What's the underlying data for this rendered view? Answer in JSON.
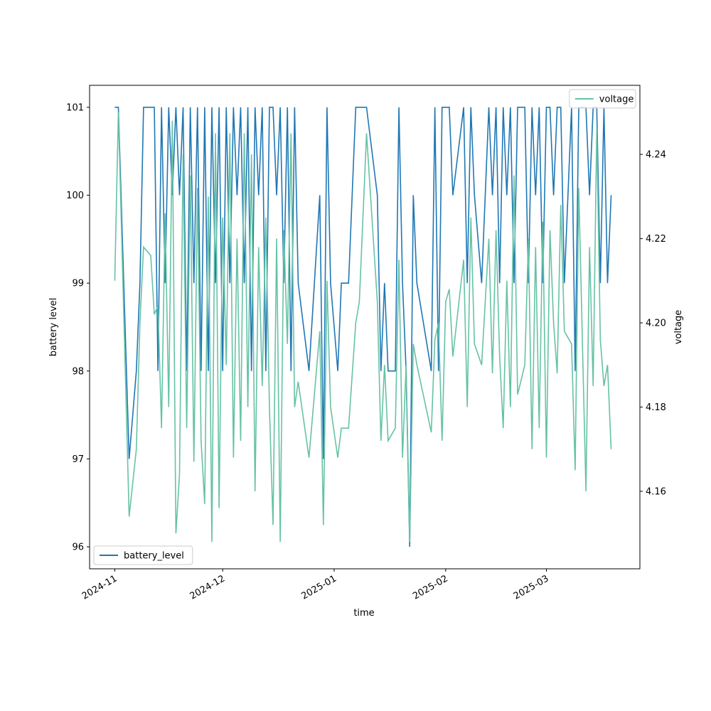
{
  "chart_data": {
    "type": "line",
    "xlabel": "time",
    "ylabel": "battery level",
    "y2label": "voltage",
    "x": [
      "2024-11-01",
      "2024-11-02",
      "2024-11-05",
      "2024-11-07",
      "2024-11-08",
      "2024-11-09",
      "2024-11-11",
      "2024-11-12",
      "2024-11-13",
      "2024-11-14",
      "2024-11-15",
      "2024-11-16",
      "2024-11-17",
      "2024-11-18",
      "2024-11-19",
      "2024-11-20",
      "2024-11-21",
      "2024-11-22",
      "2024-11-23",
      "2024-11-24",
      "2024-11-25",
      "2024-11-26",
      "2024-11-27",
      "2024-11-28",
      "2024-11-29",
      "2024-11-30",
      "2024-12-01",
      "2024-12-02",
      "2024-12-03",
      "2024-12-04",
      "2024-12-05",
      "2024-12-06",
      "2024-12-07",
      "2024-12-08",
      "2024-12-09",
      "2024-12-10",
      "2024-12-11",
      "2024-12-12",
      "2024-12-13",
      "2024-12-14",
      "2024-12-15",
      "2024-12-16",
      "2024-12-17",
      "2024-12-18",
      "2024-12-19",
      "2024-12-20",
      "2024-12-21",
      "2024-12-22",
      "2024-12-25",
      "2024-12-28",
      "2024-12-29",
      "2024-12-30",
      "2024-12-31",
      "2025-01-02",
      "2025-01-03",
      "2025-01-05",
      "2025-01-07",
      "2025-01-08",
      "2025-01-10",
      "2025-01-13",
      "2025-01-14",
      "2025-01-15",
      "2025-01-16",
      "2025-01-18",
      "2025-01-19",
      "2025-01-20",
      "2025-01-21",
      "2025-01-22",
      "2025-01-23",
      "2025-01-24",
      "2025-01-28",
      "2025-01-29",
      "2025-01-30",
      "2025-01-31",
      "2025-02-01",
      "2025-02-02",
      "2025-02-03",
      "2025-02-06",
      "2025-02-07",
      "2025-02-08",
      "2025-02-09",
      "2025-02-11",
      "2025-02-13",
      "2025-02-14",
      "2025-02-15",
      "2025-02-16",
      "2025-02-17",
      "2025-02-18",
      "2025-02-19",
      "2025-02-20",
      "2025-02-21",
      "2025-02-23",
      "2025-02-24",
      "2025-02-25",
      "2025-02-26",
      "2025-02-27",
      "2025-02-28",
      "2025-03-01",
      "2025-03-02",
      "2025-03-03",
      "2025-03-04",
      "2025-03-05",
      "2025-03-06",
      "2025-03-08",
      "2025-03-09",
      "2025-03-10",
      "2025-03-12",
      "2025-03-13",
      "2025-03-14",
      "2025-03-15",
      "2025-03-16",
      "2025-03-17",
      "2025-03-18",
      "2025-03-19"
    ],
    "series": [
      {
        "name": "battery_level",
        "color": "#1f77b4",
        "axis": "y",
        "values": [
          101,
          101,
          97,
          98,
          99,
          101,
          101,
          101,
          98,
          101,
          99,
          101,
          100,
          101,
          100,
          101,
          98,
          101,
          99,
          101,
          98,
          101,
          98,
          101,
          99,
          101,
          98,
          101,
          99,
          101,
          100,
          101,
          99,
          101,
          98,
          101,
          100,
          101,
          98,
          101,
          101,
          100,
          101,
          99,
          101,
          98,
          101,
          99,
          98,
          100,
          97,
          101,
          99,
          98,
          99,
          99,
          101,
          101,
          101,
          100,
          98,
          99,
          98,
          98,
          101,
          99,
          98,
          96,
          100,
          99,
          98,
          101,
          98,
          101,
          101,
          101,
          100,
          101,
          99,
          101,
          100,
          99,
          101,
          100,
          101,
          99,
          101,
          100,
          101,
          99,
          101,
          101,
          99,
          101,
          100,
          101,
          99,
          101,
          101,
          100,
          101,
          101,
          99,
          101,
          98,
          101,
          101,
          100,
          101,
          101,
          99,
          101,
          99,
          100
        ]
      },
      {
        "name": "voltage",
        "color": "#66c2a5",
        "axis": "y2",
        "values": [
          4.21,
          4.25,
          4.154,
          4.17,
          4.2,
          4.218,
          4.216,
          4.202,
          4.204,
          4.175,
          4.226,
          4.18,
          4.248,
          4.15,
          4.164,
          4.24,
          4.175,
          4.235,
          4.167,
          4.232,
          4.172,
          4.157,
          4.23,
          4.148,
          4.245,
          4.156,
          4.225,
          4.19,
          4.245,
          4.168,
          4.22,
          4.172,
          4.245,
          4.18,
          4.24,
          4.16,
          4.218,
          4.185,
          4.225,
          4.18,
          4.152,
          4.22,
          4.148,
          4.222,
          4.195,
          4.245,
          4.18,
          4.186,
          4.168,
          4.198,
          4.152,
          4.21,
          4.18,
          4.168,
          4.175,
          4.175,
          4.2,
          4.205,
          4.245,
          4.205,
          4.172,
          4.19,
          4.172,
          4.175,
          4.215,
          4.168,
          4.19,
          4.148,
          4.195,
          4.19,
          4.174,
          4.196,
          4.2,
          4.172,
          4.205,
          4.208,
          4.192,
          4.215,
          4.18,
          4.225,
          4.195,
          4.19,
          4.22,
          4.188,
          4.222,
          4.192,
          4.175,
          4.21,
          4.18,
          4.235,
          4.183,
          4.19,
          4.22,
          4.17,
          4.218,
          4.175,
          4.224,
          4.168,
          4.222,
          4.2,
          4.188,
          4.228,
          4.198,
          4.195,
          4.165,
          4.232,
          4.16,
          4.218,
          4.185,
          4.246,
          4.196,
          4.185,
          4.19,
          4.17
        ]
      }
    ],
    "xlim": [
      "2024-10-25",
      "2025-03-27"
    ],
    "xticks": [
      {
        "value": "2024-11-01",
        "label": "2024-11"
      },
      {
        "value": "2024-12-01",
        "label": "2024-12"
      },
      {
        "value": "2025-01-01",
        "label": "2025-01"
      },
      {
        "value": "2025-02-01",
        "label": "2025-02"
      },
      {
        "value": "2025-03-01",
        "label": "2025-03"
      }
    ],
    "ylim": [
      95.75,
      101.25
    ],
    "yticks": [
      96,
      97,
      98,
      99,
      100,
      101
    ],
    "y2lim": [
      4.1416,
      4.2564
    ],
    "y2ticks": [
      4.16,
      4.18,
      {
        "value": 4.2,
        "label": "4.20"
      },
      4.22,
      4.24
    ],
    "legend": "lower left",
    "legend2": "upper right",
    "grid": false
  }
}
